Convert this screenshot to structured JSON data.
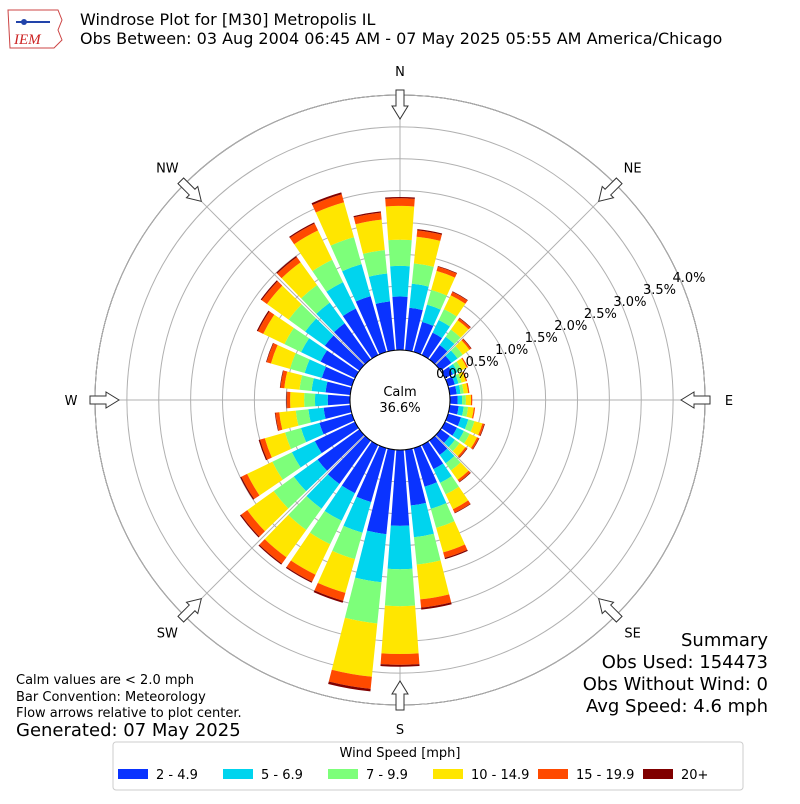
{
  "chart_data": {
    "type": "windrose",
    "title": "Windrose Plot for [M30] Metropolis  IL",
    "subtitle": "Obs Between: 03 Aug 2004 06:45 AM - 07 May 2025 05:55 AM America/Chicago",
    "direction_labels": [
      "N",
      "NE",
      "E",
      "SE",
      "S",
      "SW",
      "W",
      "NW"
    ],
    "calm_label": "Calm",
    "calm": {
      "value": 36.6,
      "label": "36.6%"
    },
    "rlim": [
      0,
      4
    ],
    "rticks": [
      {
        "value": 0,
        "label": "0.0%"
      },
      {
        "value": 0.5,
        "label": "0.5%"
      },
      {
        "value": 1,
        "label": "1.0%"
      },
      {
        "value": 1.5,
        "label": "1.5%"
      },
      {
        "value": 2,
        "label": "2.0%"
      },
      {
        "value": 2.5,
        "label": "2.5%"
      },
      {
        "value": 3,
        "label": "3.0%"
      },
      {
        "value": 3.5,
        "label": "3.5%"
      },
      {
        "value": 4,
        "label": "4.0%"
      }
    ],
    "grid": true,
    "legend_title": "Wind Speed [mph]",
    "series": [
      {
        "name": "2 - 4.9",
        "color": "#0a33ff",
        "values": [
          0.84,
          0.67,
          0.49,
          0.39,
          0.28,
          0.21,
          0.14,
          0.11,
          0.11,
          0.12,
          0.14,
          0.21,
          0.21,
          0.18,
          0.28,
          0.42,
          0.63,
          0.88,
          1.19,
          1.33,
          0.88,
          0.84,
          0.84,
          0.81,
          0.7,
          0.53,
          0.42,
          0.35,
          0.39,
          0.49,
          0.6,
          0.67,
          0.7,
          0.81,
          0.91,
          0.77
        ]
      },
      {
        "name": "5 - 6.9",
        "color": "#00d4ee",
        "values": [
          0.48,
          0.38,
          0.28,
          0.22,
          0.16,
          0.12,
          0.08,
          0.06,
          0.06,
          0.07,
          0.08,
          0.12,
          0.12,
          0.1,
          0.16,
          0.24,
          0.36,
          0.5,
          0.68,
          0.76,
          0.5,
          0.48,
          0.48,
          0.46,
          0.4,
          0.3,
          0.24,
          0.2,
          0.22,
          0.28,
          0.34,
          0.38,
          0.4,
          0.46,
          0.52,
          0.44
        ]
      },
      {
        "name": "7 - 9.9",
        "color": "#7dff7a",
        "values": [
          0.41,
          0.32,
          0.24,
          0.19,
          0.14,
          0.1,
          0.07,
          0.05,
          0.05,
          0.06,
          0.07,
          0.1,
          0.1,
          0.09,
          0.14,
          0.2,
          0.31,
          0.43,
          0.58,
          0.65,
          0.43,
          0.41,
          0.41,
          0.39,
          0.34,
          0.26,
          0.2,
          0.17,
          0.19,
          0.24,
          0.29,
          0.32,
          0.34,
          0.39,
          0.44,
          0.37
        ]
      },
      {
        "name": "10 - 14.9",
        "color": "#ffe600",
        "values": [
          0.53,
          0.42,
          0.31,
          0.24,
          0.18,
          0.13,
          0.09,
          0.07,
          0.07,
          0.08,
          0.09,
          0.13,
          0.13,
          0.11,
          0.18,
          0.26,
          0.4,
          0.55,
          0.75,
          0.84,
          0.55,
          0.53,
          0.53,
          0.51,
          0.44,
          0.33,
          0.26,
          0.22,
          0.24,
          0.31,
          0.37,
          0.42,
          0.44,
          0.51,
          0.57,
          0.48
        ]
      },
      {
        "name": "15 - 19.9",
        "color": "#ff4a00",
        "values": [
          0.12,
          0.1,
          0.07,
          0.06,
          0.04,
          0.03,
          0.02,
          0.02,
          0.02,
          0.02,
          0.02,
          0.03,
          0.03,
          0.03,
          0.04,
          0.06,
          0.09,
          0.13,
          0.17,
          0.19,
          0.13,
          0.12,
          0.12,
          0.12,
          0.1,
          0.08,
          0.06,
          0.05,
          0.06,
          0.07,
          0.09,
          0.1,
          0.1,
          0.12,
          0.13,
          0.11
        ]
      },
      {
        "name": "20+",
        "color": "#800000",
        "values": [
          0.02,
          0.02,
          0.01,
          0.01,
          0.01,
          0.01,
          0,
          0,
          0,
          0,
          0,
          0.01,
          0.01,
          0.01,
          0.01,
          0.01,
          0.02,
          0.03,
          0.03,
          0.04,
          0.03,
          0.02,
          0.02,
          0.02,
          0.02,
          0.02,
          0.01,
          0.01,
          0.01,
          0.01,
          0.02,
          0.02,
          0.02,
          0.02,
          0.03,
          0.02
        ]
      }
    ],
    "notes": [
      "Calm values are < 2.0 mph",
      "Bar Convention: Meteorology",
      "Flow arrows relative to plot center."
    ],
    "generated": "Generated: 07 May 2025",
    "summary": [
      "Summary",
      "Obs Used: 154473",
      "Obs Without Wind: 0",
      "Avg Speed: 4.6 mph"
    ]
  }
}
